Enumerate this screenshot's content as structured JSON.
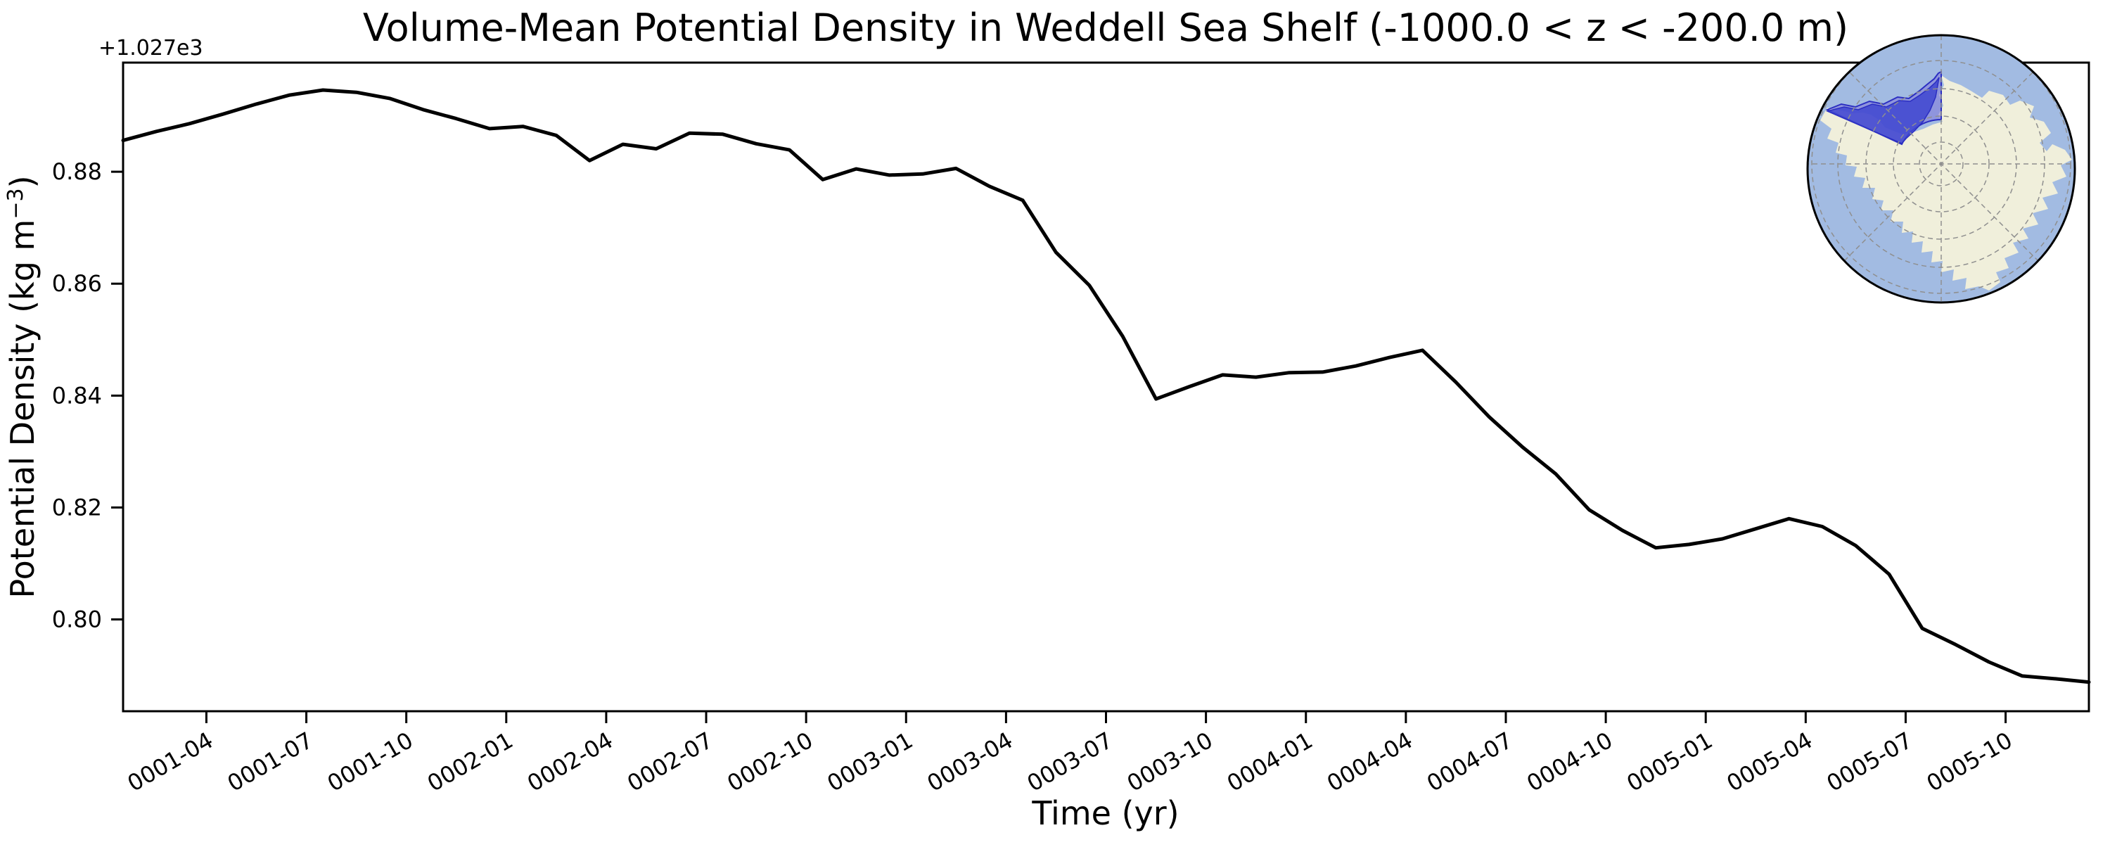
{
  "figure": {
    "title": "Volume-Mean Potential Density in Weddell Sea Shelf (-1000.0 < z < -200.0 m)"
  },
  "chart_data": {
    "type": "line",
    "title": "Volume-Mean Potential Density in Weddell Sea Shelf (-1000.0 < z < -200.0 m)",
    "xlabel": "Time (yr)",
    "ylabel": "Potential Density (kg m−3)",
    "ylabel_parts": {
      "main": "Potential Density (kg m",
      "sup": "−3",
      "close": ")"
    },
    "y_offset_text": "+1.027e3",
    "x": [
      "0001-01",
      "0001-02",
      "0001-03",
      "0001-04",
      "0001-05",
      "0001-06",
      "0001-07",
      "0001-08",
      "0001-09",
      "0001-10",
      "0001-11",
      "0001-12",
      "0002-01",
      "0002-02",
      "0002-03",
      "0002-04",
      "0002-05",
      "0002-06",
      "0002-07",
      "0002-08",
      "0002-09",
      "0002-10",
      "0002-11",
      "0002-12",
      "0003-01",
      "0003-02",
      "0003-03",
      "0003-04",
      "0003-05",
      "0003-06",
      "0003-07",
      "0003-08",
      "0003-09",
      "0003-10",
      "0003-11",
      "0003-12",
      "0004-01",
      "0004-02",
      "0004-03",
      "0004-04",
      "0004-05",
      "0004-06",
      "0004-07",
      "0004-08",
      "0004-09",
      "0004-10",
      "0004-11",
      "0004-12",
      "0005-01",
      "0005-02",
      "0005-03",
      "0005-04",
      "0005-05",
      "0005-06",
      "0005-07",
      "0005-08",
      "0005-09",
      "0005-10",
      "0005-11",
      "0005-12"
    ],
    "values": [
      1027.8856,
      1027.8872,
      1027.8886,
      1027.8903,
      1027.8921,
      1027.8937,
      1027.8946,
      1027.8942,
      1027.8931,
      1027.8911,
      1027.8895,
      1027.8877,
      1027.8881,
      1027.8865,
      1027.882,
      1027.8849,
      1027.8841,
      1027.8869,
      1027.8867,
      1027.885,
      1027.8839,
      1027.8786,
      1027.8805,
      1027.8794,
      1027.8796,
      1027.8806,
      1027.8774,
      1027.8749,
      1027.8656,
      1027.8597,
      1027.8506,
      1027.8394,
      1027.8416,
      1027.8437,
      1027.8433,
      1027.8441,
      1027.8442,
      1027.8453,
      1027.8468,
      1027.8481,
      1027.8424,
      1027.8362,
      1027.8308,
      1027.826,
      1027.8196,
      1027.8159,
      1027.8128,
      1027.8134,
      1027.8144,
      1027.8162,
      1027.818,
      1027.8166,
      1027.8132,
      1027.8081,
      1027.7984,
      1027.7955,
      1027.7924,
      1027.7899,
      1027.7894,
      1027.7888
    ],
    "series": [
      {
        "name": "volume-mean potential density",
        "color": "#000000",
        "line_width": 5
      }
    ],
    "xtick_labels": [
      "0001-04",
      "0001-07",
      "0001-10",
      "0002-01",
      "0002-04",
      "0002-07",
      "0002-10",
      "0003-01",
      "0003-04",
      "0003-07",
      "0003-10",
      "0004-01",
      "0004-04",
      "0004-07",
      "0004-10",
      "0005-01",
      "0005-04",
      "0005-07",
      "0005-10"
    ],
    "ytick_labels": [
      "0.80",
      "0.82",
      "0.84",
      "0.86",
      "0.88"
    ],
    "yticks": [
      1027.8,
      1027.82,
      1027.84,
      1027.86,
      1027.88
    ],
    "ylim": [
      1027.7836,
      1027.8995
    ],
    "grid": false,
    "legend": "none"
  },
  "inset_map": {
    "kind": "south-polar-stereographic-locator",
    "colors": {
      "ocean": "#a2bbe2",
      "land": "#f0efdb",
      "sector_fill": "#7b6fd8",
      "sector_fill_opacity": 0.5,
      "shelf_fill": "#4046d0",
      "shelf_fill_opacity": 0.85,
      "edge": "#2b2ec2",
      "graticule": "#8f8f8f",
      "rim": "#000000"
    }
  }
}
